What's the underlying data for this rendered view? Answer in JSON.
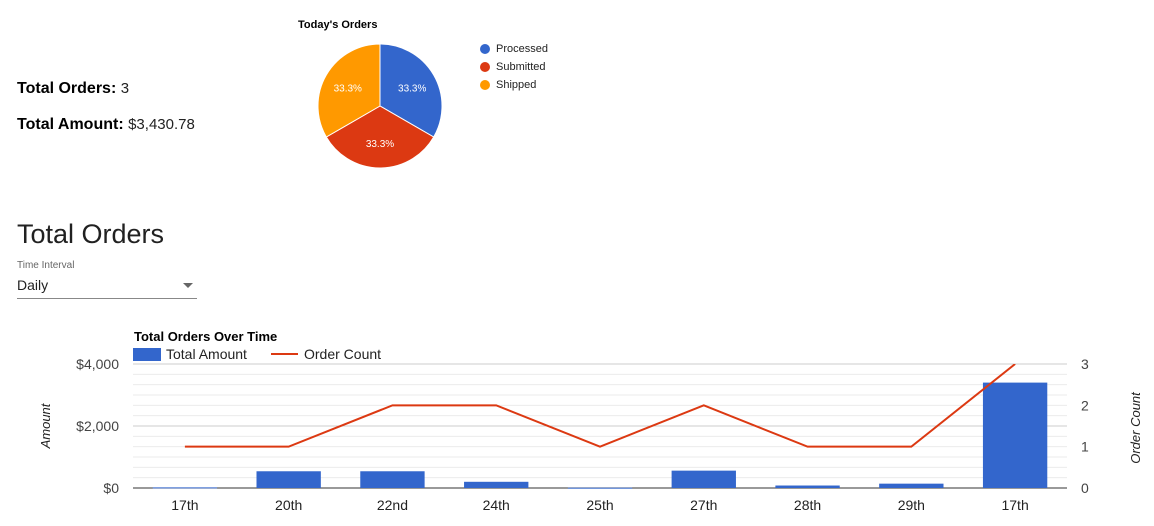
{
  "summary": {
    "total_orders_label": "Total Orders:",
    "total_orders_value": "3",
    "total_amount_label": "Total Amount:",
    "total_amount_value": "$3,430.78"
  },
  "section": {
    "title": "Total Orders",
    "interval_label": "Time Interval",
    "interval_value": "Daily"
  },
  "chart_data": [
    {
      "type": "pie",
      "title": "Today's Orders",
      "slices": [
        {
          "label": "Processed",
          "value": 33.3,
          "display": "33.3%",
          "color": "#3366cc"
        },
        {
          "label": "Submitted",
          "value": 33.3,
          "display": "33.3%",
          "color": "#dc3912"
        },
        {
          "label": "Shipped",
          "value": 33.3,
          "display": "33.3%",
          "color": "#ff9900"
        }
      ],
      "legend_position": "right"
    },
    {
      "type": "bar",
      "title": "Total Orders Over Time",
      "categories": [
        "17th",
        "20th",
        "22nd",
        "24th",
        "25th",
        "27th",
        "28th",
        "29th",
        "17th"
      ],
      "series": [
        {
          "name": "Total Amount",
          "type": "bar",
          "axis": "left",
          "color": "#3366cc",
          "values": [
            20,
            540,
            540,
            200,
            10,
            560,
            80,
            140,
            3400
          ]
        },
        {
          "name": "Order Count",
          "type": "line",
          "axis": "right",
          "color": "#dc3912",
          "values": [
            1,
            1,
            2,
            2,
            1,
            2,
            1,
            1,
            3
          ]
        }
      ],
      "ylabel": "Amount",
      "y2label": "Order Count",
      "ylim": [
        0,
        4000
      ],
      "y2lim": [
        0,
        3
      ],
      "yticks": [
        "$0",
        "$2,000",
        "$4,000"
      ],
      "y2ticks": [
        "0",
        "1",
        "2",
        "3"
      ],
      "legend_position": "top-left",
      "grid": true
    }
  ]
}
